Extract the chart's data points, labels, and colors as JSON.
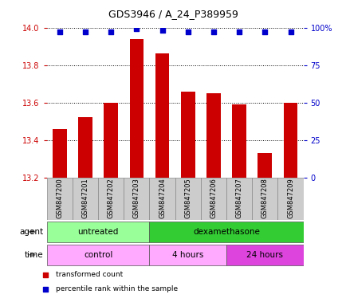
{
  "title": "GDS3946 / A_24_P389959",
  "samples": [
    "GSM847200",
    "GSM847201",
    "GSM847202",
    "GSM847203",
    "GSM847204",
    "GSM847205",
    "GSM847206",
    "GSM847207",
    "GSM847208",
    "GSM847209"
  ],
  "transformed_counts": [
    13.46,
    13.52,
    13.6,
    13.94,
    13.86,
    13.66,
    13.65,
    13.59,
    13.33,
    13.6
  ],
  "percentile_ranks": [
    97,
    97,
    97,
    99,
    98,
    97,
    97,
    97,
    97,
    97
  ],
  "ylim_left": [
    13.2,
    14.0
  ],
  "ylim_right": [
    0,
    100
  ],
  "yticks_left": [
    13.2,
    13.4,
    13.6,
    13.8,
    14.0
  ],
  "yticks_right": [
    0,
    25,
    50,
    75,
    100
  ],
  "bar_color": "#cc0000",
  "dot_color": "#0000cc",
  "agent_labels": [
    {
      "label": "untreated",
      "start": 0,
      "end": 4,
      "color": "#99ff99"
    },
    {
      "label": "dexamethasone",
      "start": 4,
      "end": 10,
      "color": "#33cc33"
    }
  ],
  "time_labels": [
    {
      "label": "control",
      "start": 0,
      "end": 4,
      "color": "#ffaaff"
    },
    {
      "label": "4 hours",
      "start": 4,
      "end": 7,
      "color": "#ffaaff"
    },
    {
      "label": "24 hours",
      "start": 7,
      "end": 10,
      "color": "#dd44dd"
    }
  ],
  "legend_items": [
    {
      "color": "#cc0000",
      "label": "transformed count"
    },
    {
      "color": "#0000cc",
      "label": "percentile rank within the sample"
    }
  ],
  "yaxis_left_color": "#cc0000",
  "yaxis_right_color": "#0000cc",
  "bar_bottom": 13.2,
  "sample_box_color": "#cccccc",
  "sample_box_edge": "#888888"
}
